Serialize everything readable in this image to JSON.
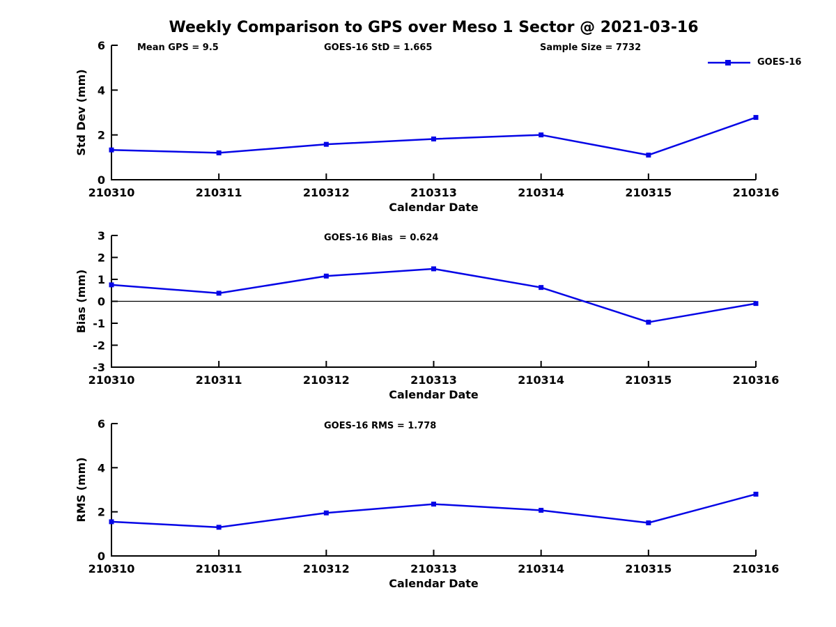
{
  "title": "Weekly Comparison to GPS over Meso 1 Sector @ 2021-03-16",
  "legend": {
    "label": "GOES-16"
  },
  "colors": {
    "series": "#0505e6",
    "axis": "#000000",
    "text": "#000000",
    "background": "#ffffff"
  },
  "chart_data": [
    {
      "type": "line",
      "name": "std-dev",
      "ylabel": "Std Dev (mm)",
      "xlabel": "Calendar Date",
      "ylim": [
        0,
        6
      ],
      "yticks": [
        6,
        4,
        2,
        0
      ],
      "categories": [
        "210310",
        "210311",
        "210312",
        "210313",
        "210314",
        "210315",
        "210316"
      ],
      "series": [
        {
          "name": "GOES-16",
          "values": [
            1.33,
            1.2,
            1.58,
            1.82,
            2.0,
            1.1,
            2.78
          ]
        }
      ],
      "annotations": [
        "Mean GPS = 9.5",
        "GOES-16 StD = 1.665",
        "Sample Size = 7732"
      ],
      "zero_line": false,
      "grid": false,
      "legend_position": "top-right"
    },
    {
      "type": "line",
      "name": "bias",
      "ylabel": "Bias (mm)",
      "xlabel": "Calendar Date",
      "ylim": [
        -3,
        3
      ],
      "yticks": [
        3,
        2,
        1,
        0,
        -1,
        -2,
        -3
      ],
      "categories": [
        "210310",
        "210311",
        "210312",
        "210313",
        "210314",
        "210315",
        "210316"
      ],
      "series": [
        {
          "name": "GOES-16",
          "values": [
            0.75,
            0.37,
            1.15,
            1.48,
            0.63,
            -0.95,
            -0.1
          ]
        }
      ],
      "annotations": [
        "",
        "GOES-16 Bias  = 0.624",
        ""
      ],
      "zero_line": true,
      "grid": false,
      "legend_position": "none"
    },
    {
      "type": "line",
      "name": "rms",
      "ylabel": "RMS (mm)",
      "xlabel": "Calendar Date",
      "ylim": [
        0,
        6
      ],
      "yticks": [
        6,
        4,
        2,
        0
      ],
      "categories": [
        "210310",
        "210311",
        "210312",
        "210313",
        "210314",
        "210315",
        "210316"
      ],
      "series": [
        {
          "name": "GOES-16",
          "values": [
            1.55,
            1.3,
            1.95,
            2.35,
            2.07,
            1.5,
            2.8
          ]
        }
      ],
      "annotations": [
        "",
        "GOES-16 RMS = 1.778",
        ""
      ],
      "zero_line": false,
      "grid": false,
      "legend_position": "none"
    }
  ]
}
